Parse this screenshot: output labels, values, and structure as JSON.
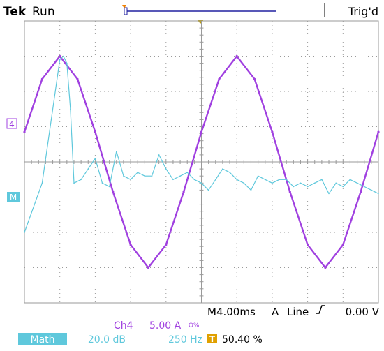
{
  "header": {
    "brand": "Tek",
    "run_state": "Run",
    "trigger_status": "Trig'd"
  },
  "markers": {
    "ch4": "4",
    "math": "M"
  },
  "timebase": {
    "horizontal_scale": "M4.00ms",
    "trigger_channel": "A",
    "trigger_source": "Line",
    "trigger_slope_icon": "rising-edge-icon",
    "trigger_level": "0.00 V"
  },
  "channel_readout": {
    "channel": "Ch4",
    "scale": "5.00 A",
    "unit_icon": "omega-percent"
  },
  "math_readout": {
    "label": "Math",
    "scale": "20.0 dB",
    "frequency": "250 Hz",
    "trigger_icon": "T",
    "position": "50.40 %"
  },
  "colors": {
    "ch4_trace": "#a040e0",
    "math_trace": "#5fc8dc",
    "graticule": "#9a9a9a",
    "readout_text": "#000000"
  },
  "chart_data": [
    {
      "type": "line",
      "series": [
        {
          "name": "Ch4",
          "x": [
            0,
            0.5,
            1,
            1.5,
            2,
            2.5,
            3,
            3.5,
            4,
            4.5,
            5,
            5.5,
            6,
            6.5,
            7,
            7.5,
            8,
            8.5,
            9,
            9.5,
            10
          ],
          "values": [
            0.85,
            2.35,
            3.0,
            2.35,
            0.85,
            -0.85,
            -2.35,
            -3.0,
            -2.35,
            -0.85,
            0.85,
            2.35,
            3.0,
            2.35,
            0.85,
            -0.85,
            -2.35,
            -3.0,
            -2.35,
            -0.85,
            0.85
          ]
        }
      ],
      "xlim": [
        0,
        10
      ],
      "ylim": [
        -4,
        4
      ],
      "grid": true
    },
    {
      "type": "line",
      "series": [
        {
          "name": "Math",
          "x": [
            0,
            0.5,
            1.0,
            1.1,
            1.2,
            1.3,
            1.4,
            1.6,
            1.8,
            2.0,
            2.2,
            2.4,
            2.6,
            2.8,
            3.0,
            3.2,
            3.4,
            3.6,
            3.8,
            4.0,
            4.2,
            4.4,
            4.6,
            4.8,
            5.0,
            5.2,
            5.4,
            5.6,
            5.8,
            6.0,
            6.2,
            6.4,
            6.6,
            6.8,
            7.0,
            7.2,
            7.4,
            7.6,
            7.8,
            8.0,
            8.2,
            8.4,
            8.6,
            8.8,
            9.0,
            9.2,
            9.4,
            9.6,
            9.8,
            10
          ],
          "values": [
            -2.0,
            -0.6,
            2.9,
            3.0,
            2.8,
            1.5,
            -0.6,
            -0.5,
            -0.2,
            0.1,
            -0.6,
            -0.7,
            0.3,
            -0.4,
            -0.5,
            -0.3,
            -0.4,
            -0.4,
            0.2,
            -0.2,
            -0.5,
            -0.4,
            -0.3,
            -0.5,
            -0.6,
            -0.8,
            -0.5,
            -0.2,
            -0.3,
            -0.5,
            -0.6,
            -0.8,
            -0.4,
            -0.5,
            -0.6,
            -0.5,
            -0.5,
            -0.7,
            -0.6,
            -0.7,
            -0.6,
            -0.5,
            -0.9,
            -0.6,
            -0.7,
            -0.5,
            -0.6,
            -0.7,
            -0.8,
            -0.9
          ]
        }
      ],
      "xlim": [
        0,
        10
      ],
      "ylim": [
        -4,
        4
      ],
      "grid": true
    }
  ]
}
